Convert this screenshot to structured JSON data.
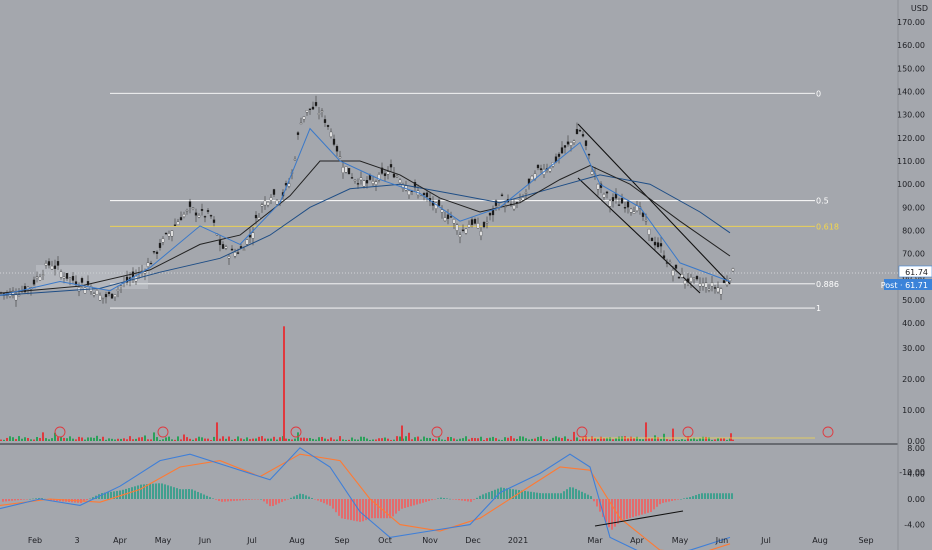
{
  "currency": "USD",
  "price_axis": {
    "ticks": [
      "170.00",
      "160.00",
      "150.00",
      "140.00",
      "130.00",
      "120.00",
      "110.00",
      "100.00",
      "90.00",
      "80.00",
      "70.00",
      "60.00",
      "50.00",
      "40.00"
    ],
    "current_price_label": "61.74",
    "post_label": "Post · 61.71"
  },
  "volume_axis": {
    "ticks": [
      "30.00",
      "20.00",
      "10.00",
      "0.00",
      "-10.00"
    ]
  },
  "macd_axis": {
    "ticks": [
      "8.00",
      "4.00",
      "0.00",
      "-4.00"
    ]
  },
  "time_axis": [
    "Feb",
    "3",
    "Apr",
    "May",
    "Jun",
    "Jul",
    "Aug",
    "Sep",
    "Oct",
    "Nov",
    "Dec",
    "2021",
    "Mar",
    "Apr",
    "May",
    "Jun",
    "Jul",
    "Aug",
    "Sep"
  ],
  "fib_levels": [
    {
      "label": "0",
      "value": 139.2,
      "color": "#ffffff"
    },
    {
      "label": "0.5",
      "value": 92.9,
      "color": "#ffffff"
    },
    {
      "label": "0.618",
      "value": 81.8,
      "color": "#f5d74a"
    },
    {
      "label": "0.886",
      "value": 57.0,
      "color": "#ffffff"
    },
    {
      "label": "1",
      "value": 46.5,
      "color": "#ffffff"
    }
  ],
  "colors": {
    "background": "#a4a7ad",
    "bull_candle": "#ffffff",
    "bear_candle": "#1a1a1a",
    "volume_up": "#2aa15a",
    "volume_down": "#e0393e",
    "ma_fast": "#3a79c9",
    "ma_mid": "#222222",
    "ma_slow": "#1f4e86",
    "macd_line": "#3f7fd8",
    "signal_line": "#ff7a33",
    "hist_pos": "#2f9e88",
    "hist_neg": "#f06060",
    "axis_text": "#1e1f24",
    "price_badge": "#3b83d9"
  },
  "chart_data": {
    "type": "candlestick",
    "price_range": [
      40,
      175
    ],
    "close_path": [
      [
        0,
        53
      ],
      [
        10,
        53
      ],
      [
        20,
        54
      ],
      [
        30,
        56
      ],
      [
        40,
        62
      ],
      [
        50,
        66
      ],
      [
        60,
        62
      ],
      [
        70,
        59
      ],
      [
        80,
        57
      ],
      [
        90,
        56
      ],
      [
        100,
        51
      ],
      [
        110,
        52
      ],
      [
        120,
        56
      ],
      [
        130,
        59
      ],
      [
        140,
        62
      ],
      [
        150,
        67
      ],
      [
        160,
        74
      ],
      [
        170,
        80
      ],
      [
        180,
        86
      ],
      [
        190,
        89
      ],
      [
        200,
        87
      ],
      [
        210,
        86
      ],
      [
        220,
        73
      ],
      [
        230,
        70
      ],
      [
        240,
        72
      ],
      [
        250,
        78
      ],
      [
        260,
        90
      ],
      [
        270,
        96
      ],
      [
        280,
        94
      ],
      [
        290,
        102
      ],
      [
        300,
        128
      ],
      [
        310,
        133
      ],
      [
        320,
        131
      ],
      [
        330,
        123
      ],
      [
        340,
        110
      ],
      [
        350,
        104
      ],
      [
        360,
        101
      ],
      [
        370,
        100
      ],
      [
        380,
        103
      ],
      [
        390,
        106
      ],
      [
        400,
        102
      ],
      [
        410,
        98
      ],
      [
        420,
        96
      ],
      [
        430,
        92
      ],
      [
        440,
        88
      ],
      [
        450,
        86
      ],
      [
        460,
        79
      ],
      [
        470,
        84
      ],
      [
        480,
        80
      ],
      [
        490,
        86
      ],
      [
        500,
        94
      ],
      [
        510,
        90
      ],
      [
        520,
        92
      ],
      [
        530,
        101
      ],
      [
        540,
        107
      ],
      [
        550,
        108
      ],
      [
        560,
        113
      ],
      [
        570,
        118
      ],
      [
        580,
        124
      ],
      [
        590,
        108
      ],
      [
        600,
        97
      ],
      [
        610,
        93
      ],
      [
        620,
        92
      ],
      [
        630,
        91
      ],
      [
        640,
        88
      ],
      [
        650,
        77
      ],
      [
        660,
        72
      ],
      [
        670,
        64
      ],
      [
        680,
        60
      ],
      [
        690,
        58
      ],
      [
        700,
        57
      ],
      [
        710,
        56
      ],
      [
        720,
        55
      ],
      [
        730,
        61.7
      ]
    ],
    "ma_fast_path": [
      [
        0,
        52
      ],
      [
        60,
        58
      ],
      [
        110,
        54
      ],
      [
        150,
        64
      ],
      [
        200,
        82
      ],
      [
        240,
        74
      ],
      [
        280,
        92
      ],
      [
        310,
        124
      ],
      [
        340,
        110
      ],
      [
        380,
        102
      ],
      [
        420,
        96
      ],
      [
        460,
        84
      ],
      [
        500,
        90
      ],
      [
        540,
        104
      ],
      [
        580,
        118
      ],
      [
        600,
        100
      ],
      [
        640,
        90
      ],
      [
        680,
        66
      ],
      [
        730,
        58
      ]
    ],
    "ma_mid_path": [
      [
        0,
        53
      ],
      [
        80,
        56
      ],
      [
        150,
        63
      ],
      [
        200,
        74
      ],
      [
        240,
        78
      ],
      [
        290,
        95
      ],
      [
        320,
        110
      ],
      [
        360,
        110
      ],
      [
        400,
        104
      ],
      [
        440,
        94
      ],
      [
        480,
        88
      ],
      [
        520,
        92
      ],
      [
        560,
        102
      ],
      [
        590,
        108
      ],
      [
        630,
        100
      ],
      [
        680,
        84
      ],
      [
        730,
        69
      ]
    ],
    "ma_slow_path": [
      [
        0,
        52
      ],
      [
        100,
        55
      ],
      [
        160,
        62
      ],
      [
        220,
        68
      ],
      [
        270,
        78
      ],
      [
        310,
        90
      ],
      [
        350,
        98
      ],
      [
        400,
        100
      ],
      [
        450,
        96
      ],
      [
        500,
        92
      ],
      [
        550,
        98
      ],
      [
        600,
        104
      ],
      [
        650,
        100
      ],
      [
        700,
        88
      ],
      [
        730,
        79
      ]
    ],
    "volume_spikes": [
      [
        283,
        37
      ],
      [
        216,
        6
      ],
      [
        401,
        5
      ],
      [
        645,
        6
      ],
      [
        672,
        4
      ],
      [
        730,
        2.5
      ]
    ],
    "macd_path": [
      [
        0,
        -1.5
      ],
      [
        40,
        0
      ],
      [
        80,
        -1
      ],
      [
        120,
        2
      ],
      [
        160,
        6
      ],
      [
        190,
        7
      ],
      [
        230,
        5
      ],
      [
        270,
        3
      ],
      [
        300,
        8
      ],
      [
        330,
        5
      ],
      [
        360,
        -2
      ],
      [
        390,
        -6
      ],
      [
        430,
        -5
      ],
      [
        470,
        -4
      ],
      [
        500,
        1
      ],
      [
        540,
        4
      ],
      [
        570,
        7
      ],
      [
        590,
        5
      ],
      [
        610,
        -6
      ],
      [
        650,
        -9
      ],
      [
        690,
        -8
      ],
      [
        730,
        -6
      ]
    ],
    "signal_path": [
      [
        0,
        -1
      ],
      [
        50,
        0
      ],
      [
        100,
        -0.5
      ],
      [
        140,
        1.5
      ],
      [
        180,
        5
      ],
      [
        220,
        6
      ],
      [
        260,
        3.5
      ],
      [
        300,
        7
      ],
      [
        340,
        6
      ],
      [
        370,
        0
      ],
      [
        400,
        -4
      ],
      [
        440,
        -5
      ],
      [
        480,
        -3
      ],
      [
        520,
        1
      ],
      [
        560,
        5
      ],
      [
        590,
        4.5
      ],
      [
        620,
        -3
      ],
      [
        660,
        -8
      ],
      [
        700,
        -8.5
      ],
      [
        730,
        -7
      ]
    ]
  }
}
